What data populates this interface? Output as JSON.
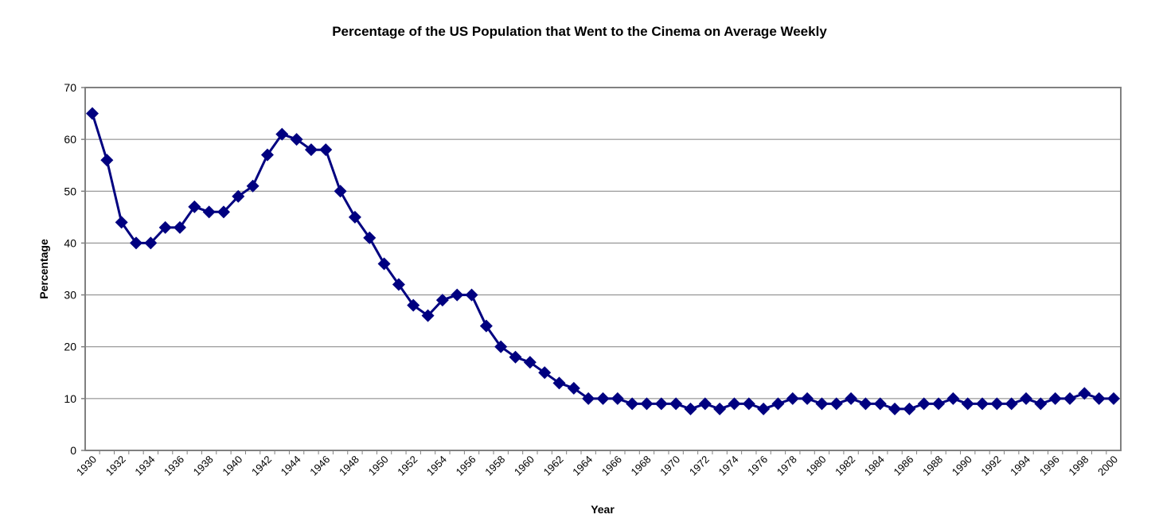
{
  "chart_data": {
    "type": "line",
    "title": "Percentage of the US Population that Went to the Cinema on Average Weekly",
    "xlabel": "Year",
    "ylabel": "Percentage",
    "ylim": [
      0,
      70
    ],
    "y_ticks": [
      0,
      10,
      20,
      30,
      40,
      50,
      60,
      70
    ],
    "x_range": [
      1930,
      2000
    ],
    "x_ticks": [
      "1930",
      "1932",
      "1934",
      "1936",
      "1938",
      "1940",
      "1942",
      "1944",
      "1946",
      "1948",
      "1950",
      "1952",
      "1954",
      "1956",
      "1958",
      "1960",
      "1962",
      "1964",
      "1966",
      "1968",
      "1970",
      "1972",
      "1974",
      "1976",
      "1978",
      "1980",
      "1982",
      "1984",
      "1986",
      "1988",
      "1990",
      "1992",
      "1994",
      "1996",
      "1998",
      "2000"
    ],
    "grid": true,
    "legend": "none",
    "colors": {
      "series": "#000080",
      "grid": "#808080",
      "frame": "#808080"
    },
    "series": [
      {
        "marker": "diamond",
        "x": [
          1930,
          1931,
          1932,
          1933,
          1934,
          1935,
          1936,
          1937,
          1938,
          1939,
          1940,
          1941,
          1942,
          1943,
          1944,
          1945,
          1946,
          1947,
          1948,
          1949,
          1950,
          1951,
          1952,
          1953,
          1954,
          1955,
          1956,
          1957,
          1958,
          1959,
          1960,
          1961,
          1962,
          1963,
          1964,
          1965,
          1966,
          1967,
          1968,
          1969,
          1970,
          1971,
          1972,
          1973,
          1974,
          1975,
          1976,
          1977,
          1978,
          1979,
          1980,
          1981,
          1982,
          1983,
          1984,
          1985,
          1986,
          1987,
          1988,
          1989,
          1990,
          1991,
          1992,
          1993,
          1994,
          1995,
          1996,
          1997,
          1998,
          1999,
          2000
        ],
        "values": [
          65,
          56,
          44,
          40,
          40,
          43,
          43,
          47,
          46,
          46,
          49,
          51,
          57,
          61,
          60,
          58,
          58,
          50,
          45,
          41,
          36,
          32,
          28,
          26,
          29,
          30,
          30,
          24,
          20,
          18,
          17,
          15,
          13,
          12,
          10,
          10,
          10,
          9,
          9,
          9,
          9,
          8,
          9,
          8,
          9,
          9,
          8,
          9,
          10,
          10,
          9,
          9,
          10,
          9,
          9,
          8,
          8,
          9,
          9,
          10,
          9,
          9,
          9,
          9,
          10,
          9,
          10,
          10,
          11,
          10,
          10
        ]
      }
    ]
  }
}
